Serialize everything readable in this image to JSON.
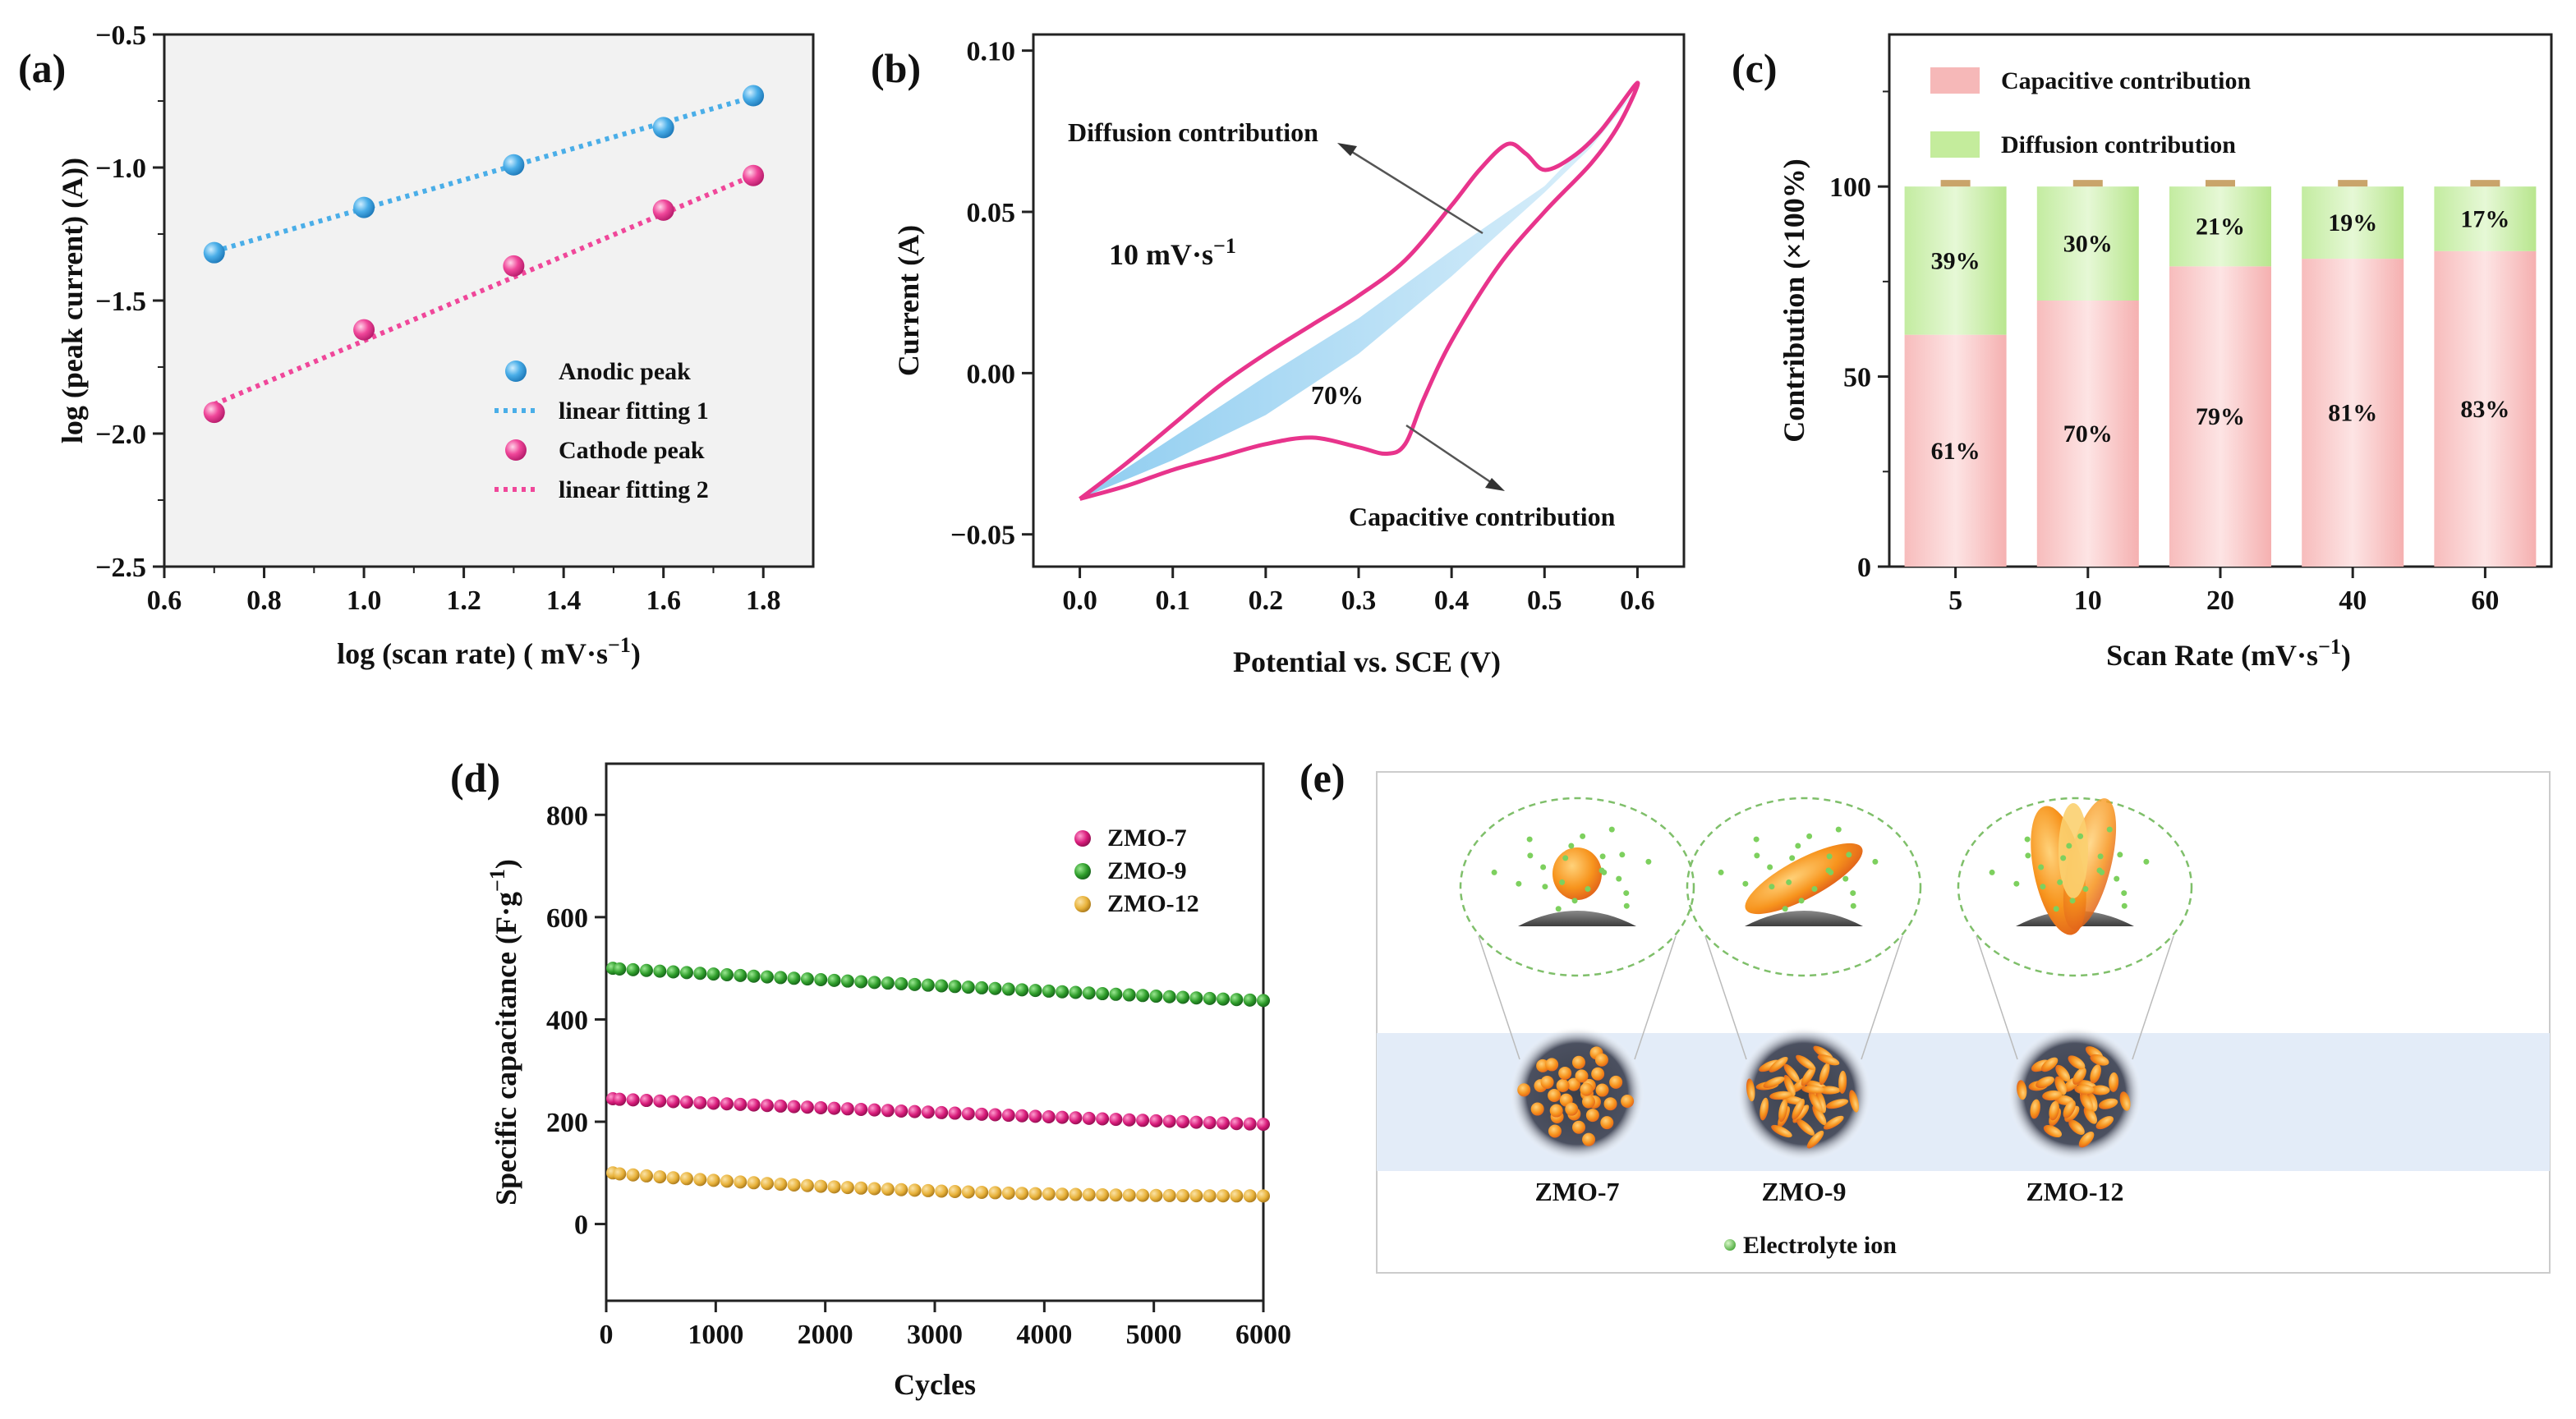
{
  "chart_data": [
    {
      "id": "a",
      "type": "scatter",
      "panel_label": "(a)",
      "xlabel": "log (scan rate) ( mV·s",
      "xlabel_sup": "−1",
      "xlabel_end": ")",
      "ylabel": "log (peak current) (A))",
      "xlim": [
        0.6,
        1.9
      ],
      "ylim": [
        -2.5,
        -0.5
      ],
      "xticks": [
        "0.6",
        "0.8",
        "1.0",
        "1.2",
        "1.4",
        "1.6",
        "1.8"
      ],
      "yticks": [
        "−0.5",
        "−1.0",
        "−1.5",
        "−2.0",
        "−2.5"
      ],
      "series": [
        {
          "name": "Anodic peak",
          "color": "#4aaee8",
          "x": [
            0.7,
            1.0,
            1.3,
            1.6,
            1.78
          ],
          "y": [
            -1.32,
            -1.15,
            -0.99,
            -0.85,
            -0.73
          ]
        },
        {
          "name": "Cathode peak",
          "color": "#f0479a",
          "x": [
            0.7,
            1.0,
            1.3,
            1.6,
            1.78
          ],
          "y": [
            -1.92,
            -1.61,
            -1.37,
            -1.16,
            -1.03
          ]
        }
      ],
      "fits": [
        {
          "name": "linear fitting 1",
          "color": "#4aaee8",
          "x": [
            0.7,
            1.78
          ],
          "y": [
            -1.315,
            -0.735
          ]
        },
        {
          "name": "linear fitting 2",
          "color": "#f0479a",
          "x": [
            0.7,
            1.78
          ],
          "y": [
            -1.89,
            -1.03
          ]
        }
      ]
    },
    {
      "id": "b",
      "type": "line",
      "panel_label": "(b)",
      "xlabel": "Potential vs. SCE (V)",
      "ylabel": "Current (A)",
      "xlim": [
        -0.05,
        0.65
      ],
      "ylim": [
        -0.06,
        0.105
      ],
      "xticks": [
        "0.0",
        "0.1",
        "0.2",
        "0.3",
        "0.4",
        "0.5",
        "0.6"
      ],
      "yticks": [
        "0.10",
        "0.05",
        "0.00",
        "−0.05"
      ],
      "scan_rate": "10 mV·s",
      "scan_rate_sup": "−1",
      "annotations": [
        "Diffusion contribution",
        "Capacitive contribution",
        "70%"
      ],
      "cv_curve": {
        "x": [
          0.0,
          0.05,
          0.1,
          0.15,
          0.2,
          0.25,
          0.3,
          0.35,
          0.4,
          0.43,
          0.46,
          0.48,
          0.5,
          0.53,
          0.56,
          0.6,
          0.58,
          0.55,
          0.5,
          0.45,
          0.4,
          0.37,
          0.35,
          0.33,
          0.3,
          0.25,
          0.2,
          0.15,
          0.1,
          0.05,
          0.0
        ],
        "y": [
          -0.039,
          -0.028,
          -0.016,
          -0.004,
          0.006,
          0.015,
          0.024,
          0.035,
          0.052,
          0.063,
          0.071,
          0.068,
          0.063,
          0.067,
          0.075,
          0.09,
          0.077,
          0.065,
          0.05,
          0.033,
          0.01,
          -0.008,
          -0.022,
          -0.025,
          -0.023,
          -0.02,
          -0.022,
          -0.026,
          -0.03,
          -0.035,
          -0.039
        ]
      },
      "capacitive_region": {
        "x": [
          0.0,
          0.1,
          0.2,
          0.3,
          0.4,
          0.5,
          0.6,
          0.55,
          0.5,
          0.4,
          0.3,
          0.2,
          0.1,
          0.0
        ],
        "y": [
          -0.039,
          -0.02,
          -0.001,
          0.017,
          0.038,
          0.058,
          0.088,
          0.07,
          0.056,
          0.03,
          0.006,
          -0.013,
          -0.027,
          -0.039
        ]
      }
    },
    {
      "id": "c",
      "type": "bar",
      "panel_label": "(c)",
      "xlabel": "Scan Rate (mV·s",
      "xlabel_sup": "−1",
      "xlabel_end": ")",
      "ylabel": "Contribution (×100%)",
      "ylim": [
        0,
        140
      ],
      "yticks": [
        "0",
        "50",
        "100"
      ],
      "categories": [
        "5",
        "10",
        "20",
        "40",
        "60"
      ],
      "series": [
        {
          "name": "Capacitive contribution",
          "color": "#f6b8b8",
          "values": [
            61,
            70,
            79,
            81,
            83
          ],
          "labels": [
            "61%",
            "70%",
            "79%",
            "81%",
            "83%"
          ]
        },
        {
          "name": "Diffusion contribution",
          "color": "#c4ec9c",
          "values": [
            39,
            30,
            21,
            19,
            17
          ],
          "labels": [
            "39%",
            "30%",
            "21%",
            "19%",
            "17%"
          ]
        }
      ]
    },
    {
      "id": "d",
      "type": "scatter",
      "panel_label": "(d)",
      "xlabel": "Cycles",
      "ylabel": "Specific capacitance (F·g",
      "ylabel_sup": "−1",
      "ylabel_end": ")",
      "xlim": [
        0,
        6000
      ],
      "ylim": [
        -150,
        900
      ],
      "xticks": [
        "0",
        "1000",
        "2000",
        "3000",
        "4000",
        "5000",
        "6000"
      ],
      "yticks": [
        "0",
        "200",
        "400",
        "600",
        "800"
      ],
      "series": [
        {
          "name": "ZMO-7",
          "color": "#d81b7a",
          "start": 245,
          "end": 195
        },
        {
          "name": "ZMO-9",
          "color": "#2e9d2a",
          "start": 500,
          "end": 437
        },
        {
          "name": "ZMO-12",
          "color": "#e8b23a",
          "start": 100,
          "end": 55
        }
      ],
      "point_count": 50
    },
    {
      "id": "e",
      "type": "diagram",
      "panel_label": "(e)",
      "samples": [
        "ZMO-7",
        "ZMO-9",
        "ZMO-12"
      ],
      "legend": "Electrolyte ion"
    }
  ]
}
